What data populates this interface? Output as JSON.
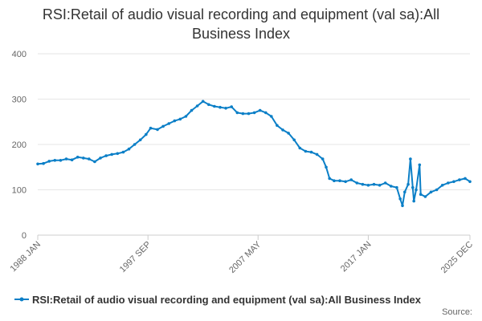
{
  "chart_data": {
    "type": "line",
    "title": "RSI:Retail of audio visual recording and equipment (val sa):All Business Index",
    "xlabel": "",
    "ylabel": "",
    "ylim": [
      0,
      400
    ],
    "yticks": [
      0,
      100,
      200,
      300,
      400
    ],
    "xlim": [
      1988.0,
      2025.92
    ],
    "xtick_labels": [
      {
        "label": "1988 JAN",
        "x": 1988.0
      },
      {
        "label": "1997 SEP",
        "x": 1997.67
      },
      {
        "label": "2007 MAY",
        "x": 2007.33
      },
      {
        "label": "2017 JAN",
        "x": 2017.0
      },
      {
        "label": "2025 DEC",
        "x": 2025.92
      }
    ],
    "grid": "horizontal",
    "legend_position": "bottom",
    "color": "#0b7fc7",
    "series": [
      {
        "name": "RSI:Retail of audio visual recording and equipment (val sa):All Business Index",
        "points": [
          [
            1988.0,
            157
          ],
          [
            1988.5,
            158
          ],
          [
            1989.0,
            163
          ],
          [
            1989.5,
            165
          ],
          [
            1990.0,
            165
          ],
          [
            1990.5,
            168
          ],
          [
            1991.0,
            166
          ],
          [
            1991.5,
            172
          ],
          [
            1992.0,
            170
          ],
          [
            1992.5,
            168
          ],
          [
            1993.0,
            162
          ],
          [
            1993.5,
            170
          ],
          [
            1994.0,
            175
          ],
          [
            1994.5,
            178
          ],
          [
            1995.0,
            180
          ],
          [
            1995.5,
            183
          ],
          [
            1996.0,
            190
          ],
          [
            1996.5,
            200
          ],
          [
            1997.0,
            210
          ],
          [
            1997.5,
            222
          ],
          [
            1997.9,
            236
          ],
          [
            1998.5,
            233
          ],
          [
            1999.0,
            240
          ],
          [
            1999.5,
            246
          ],
          [
            2000.0,
            252
          ],
          [
            2000.5,
            256
          ],
          [
            2001.0,
            262
          ],
          [
            2001.5,
            275
          ],
          [
            2002.0,
            285
          ],
          [
            2002.5,
            295
          ],
          [
            2003.0,
            288
          ],
          [
            2003.5,
            284
          ],
          [
            2004.0,
            282
          ],
          [
            2004.5,
            280
          ],
          [
            2005.0,
            283
          ],
          [
            2005.5,
            270
          ],
          [
            2006.0,
            268
          ],
          [
            2006.5,
            268
          ],
          [
            2007.0,
            270
          ],
          [
            2007.5,
            275
          ],
          [
            2008.0,
            270
          ],
          [
            2008.5,
            262
          ],
          [
            2009.0,
            242
          ],
          [
            2009.5,
            232
          ],
          [
            2010.0,
            225
          ],
          [
            2010.5,
            210
          ],
          [
            2011.0,
            192
          ],
          [
            2011.5,
            185
          ],
          [
            2012.0,
            183
          ],
          [
            2012.5,
            178
          ],
          [
            2013.0,
            168
          ],
          [
            2013.3,
            150
          ],
          [
            2013.6,
            125
          ],
          [
            2014.0,
            120
          ],
          [
            2014.5,
            120
          ],
          [
            2015.0,
            118
          ],
          [
            2015.5,
            122
          ],
          [
            2016.0,
            115
          ],
          [
            2016.5,
            112
          ],
          [
            2017.0,
            110
          ],
          [
            2017.5,
            112
          ],
          [
            2018.0,
            110
          ],
          [
            2018.5,
            115
          ],
          [
            2019.0,
            108
          ],
          [
            2019.5,
            105
          ],
          [
            2019.8,
            80
          ],
          [
            2020.0,
            65
          ],
          [
            2020.2,
            95
          ],
          [
            2020.5,
            112
          ],
          [
            2020.7,
            168
          ],
          [
            2020.9,
            105
          ],
          [
            2021.0,
            75
          ],
          [
            2021.2,
            100
          ],
          [
            2021.5,
            155
          ],
          [
            2021.6,
            90
          ],
          [
            2022.0,
            85
          ],
          [
            2022.5,
            95
          ],
          [
            2023.0,
            100
          ],
          [
            2023.5,
            110
          ],
          [
            2024.0,
            115
          ],
          [
            2024.5,
            118
          ],
          [
            2025.0,
            122
          ],
          [
            2025.5,
            125
          ],
          [
            2025.92,
            118
          ]
        ]
      }
    ],
    "source_label": "Source:"
  }
}
